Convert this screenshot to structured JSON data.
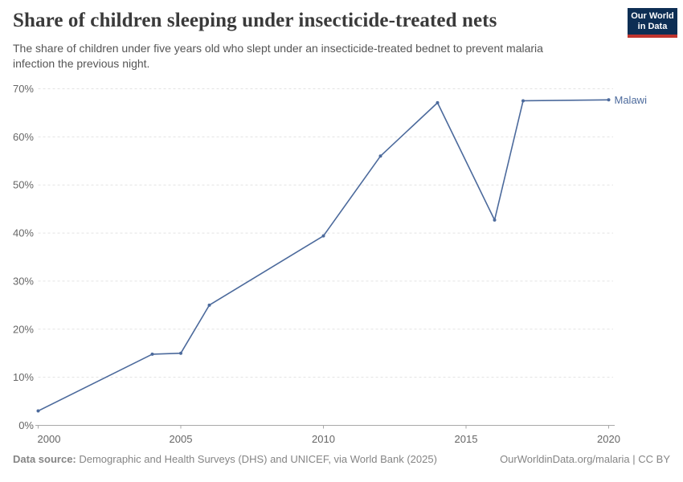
{
  "header": {
    "title": "Share of children sleeping under insecticide-treated nets",
    "subtitle": "The share of children under five years old who slept under an insecticide-treated bednet to prevent malaria\ninfection the previous night.",
    "logo": {
      "line1": "Our World",
      "line2": "in Data",
      "bg_color": "#0d2e54",
      "bar_color": "#c0342e"
    }
  },
  "chart_data": {
    "type": "line",
    "title": "Share of children sleeping under insecticide-treated nets",
    "subtitle": "The share of children under five years old who slept under an insecticide-treated bednet to prevent malaria infection the previous night.",
    "x": [
      2000,
      2004,
      2005,
      2006,
      2010,
      2012,
      2014,
      2016,
      2017,
      2020
    ],
    "series": [
      {
        "name": "Malawi",
        "color": "#4C6A9C",
        "values": [
          3,
          14.8,
          15,
          25,
          39.4,
          56,
          67.1,
          42.7,
          67.5,
          67.7
        ]
      }
    ],
    "xlabel": "",
    "ylabel": "",
    "xlim": [
      2000,
      2020
    ],
    "ylim": [
      0,
      70
    ],
    "x_ticks": [
      2000,
      2005,
      2010,
      2015,
      2020
    ],
    "y_ticks": [
      0,
      10,
      20,
      30,
      40,
      50,
      60,
      70
    ],
    "y_tick_suffix": "%",
    "grid": "horizontal-dashed",
    "legend_position": "line-end-label",
    "entity_label": "Malawi"
  },
  "colors": {
    "line": "#4C6A9C",
    "grid": "#e3e3e3",
    "axis": "#a8a8a8",
    "tick_text": "#666666"
  },
  "footer": {
    "source_label": "Data source:",
    "source_text": " Demographic and Health Surveys (DHS) and UNICEF, via World Bank (2025)",
    "credit": "OurWorldinData.org/malaria | CC BY"
  }
}
